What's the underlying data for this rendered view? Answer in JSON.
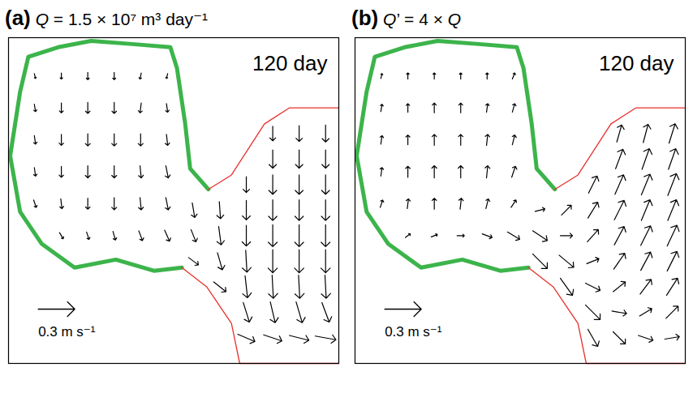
{
  "chart_data": [
    {
      "type": "vector_field",
      "panel": "(a)",
      "title": "Q = 1.5 × 10⁷ m³ day⁻¹",
      "annotation": "120 day",
      "scale_arrow": {
        "value": 0.3,
        "label": "0.3 m s⁻¹"
      },
      "xlim": [
        0,
        100
      ],
      "ylim": [
        0,
        102
      ],
      "xticks": [],
      "yticks": [],
      "tick_labels": false,
      "color": "#000000",
      "vectors": {
        "x": [
          8,
          16,
          24,
          32,
          40,
          48,
          8,
          16,
          24,
          32,
          40,
          48,
          8,
          16,
          24,
          32,
          40,
          48,
          8,
          16,
          24,
          32,
          40,
          48,
          8,
          16,
          24,
          32,
          40,
          48,
          16,
          24,
          32,
          40,
          48,
          56,
          56,
          56,
          64,
          64,
          64,
          64,
          72,
          72,
          72,
          72,
          72,
          72,
          72,
          80,
          80,
          80,
          80,
          80,
          80,
          80,
          80,
          80,
          88,
          88,
          88,
          88,
          88,
          88,
          88,
          88,
          88,
          96,
          96,
          96,
          96,
          96,
          96,
          96,
          96,
          96
        ],
        "y": [
          90,
          90,
          90,
          90,
          90,
          90,
          80,
          80,
          80,
          80,
          80,
          80,
          70,
          70,
          70,
          70,
          70,
          70,
          60,
          60,
          60,
          60,
          60,
          60,
          50,
          50,
          50,
          50,
          50,
          50,
          40,
          40,
          40,
          40,
          40,
          32,
          40,
          48,
          24,
          32,
          40,
          48,
          8,
          16,
          24,
          32,
          40,
          48,
          56,
          8,
          16,
          24,
          32,
          40,
          48,
          56,
          64,
          72,
          8,
          16,
          24,
          32,
          40,
          48,
          56,
          64,
          72,
          8,
          16,
          24,
          32,
          40,
          48,
          56,
          64,
          72
        ],
        "u": [
          0.01,
          0,
          0,
          0,
          -0.01,
          -0.01,
          0.01,
          0,
          0,
          0,
          -0.01,
          0.01,
          0.01,
          0,
          0,
          0,
          0,
          0.01,
          0.01,
          0,
          0,
          0,
          0.01,
          0.02,
          0.02,
          0.01,
          0,
          0,
          0.01,
          0.02,
          0.03,
          0.02,
          0.02,
          0.03,
          0.04,
          0.08,
          0.04,
          0.02,
          0.1,
          0.04,
          0.02,
          0.01,
          0.14,
          0.05,
          0.02,
          0.01,
          0,
          0,
          0,
          0.15,
          0.04,
          0.01,
          0,
          0,
          0,
          0,
          0,
          0,
          0.16,
          0.05,
          0.01,
          0,
          0,
          0,
          0,
          0,
          0,
          0.17,
          0.06,
          0.01,
          0,
          0,
          0,
          0,
          0,
          0
        ],
        "v": [
          -0.04,
          -0.05,
          -0.06,
          -0.06,
          -0.05,
          -0.04,
          -0.06,
          -0.08,
          -0.09,
          -0.09,
          -0.08,
          -0.07,
          -0.07,
          -0.09,
          -0.1,
          -0.1,
          -0.1,
          -0.09,
          -0.07,
          -0.09,
          -0.1,
          -0.1,
          -0.1,
          -0.1,
          -0.06,
          -0.08,
          -0.09,
          -0.1,
          -0.1,
          -0.1,
          -0.05,
          -0.06,
          -0.07,
          -0.08,
          -0.09,
          -0.06,
          -0.1,
          -0.12,
          -0.08,
          -0.14,
          -0.15,
          -0.14,
          -0.06,
          -0.16,
          -0.18,
          -0.18,
          -0.17,
          -0.16,
          -0.13,
          -0.05,
          -0.17,
          -0.19,
          -0.19,
          -0.18,
          -0.17,
          -0.16,
          -0.15,
          -0.12,
          -0.04,
          -0.17,
          -0.19,
          -0.19,
          -0.18,
          -0.17,
          -0.16,
          -0.15,
          -0.13,
          -0.03,
          -0.16,
          -0.19,
          -0.19,
          -0.18,
          -0.17,
          -0.16,
          -0.15,
          -0.14
        ]
      },
      "boundaries": [
        {
          "color": "#3cb44b",
          "x": [
            60.5,
            55,
            53.5,
            51,
            49,
            37.5,
            25,
            15,
            6,
            3.5,
            0.5,
            3.5,
            10,
            20,
            32.5,
            44,
            52.5
          ],
          "y": [
            54.5,
            61,
            75,
            92.5,
            99,
            100,
            101,
            99,
            96,
            85,
            65,
            47.5,
            37.5,
            30,
            32.5,
            29,
            30
          ]
        },
        {
          "color": "#e8302c",
          "x": [
            60.5,
            67.5,
            77.5,
            85,
            100
          ],
          "y": [
            54.5,
            59,
            75,
            80,
            80
          ]
        },
        {
          "color": "#e8302c",
          "x": [
            52.5,
            60,
            67.5,
            70,
            100
          ],
          "y": [
            30,
            24,
            12.5,
            0,
            0
          ]
        }
      ]
    },
    {
      "type": "vector_field",
      "panel": "(b)",
      "title": "Q’ = 4 × Q",
      "annotation": "120 day",
      "scale_arrow": {
        "value": 0.3,
        "label": "0.3 m s⁻¹"
      },
      "xlim": [
        0,
        100
      ],
      "ylim": [
        0,
        102
      ],
      "xticks": [],
      "yticks": [],
      "tick_labels": false,
      "color": "#000000",
      "vectors": {
        "x": [
          8,
          16,
          24,
          32,
          40,
          48,
          8,
          16,
          24,
          32,
          40,
          48,
          8,
          16,
          24,
          32,
          40,
          48,
          8,
          16,
          24,
          32,
          40,
          48,
          8,
          16,
          24,
          32,
          40,
          48,
          16,
          24,
          32,
          40,
          48,
          56,
          56,
          56,
          64,
          64,
          64,
          64,
          72,
          72,
          72,
          72,
          72,
          72,
          72,
          80,
          80,
          80,
          80,
          80,
          80,
          80,
          80,
          80,
          88,
          88,
          88,
          88,
          88,
          88,
          88,
          88,
          88,
          96,
          96,
          96,
          96,
          96,
          96,
          96,
          96,
          96
        ],
        "y": [
          90,
          90,
          90,
          90,
          90,
          90,
          80,
          80,
          80,
          80,
          80,
          80,
          70,
          70,
          70,
          70,
          70,
          70,
          60,
          60,
          60,
          60,
          60,
          60,
          50,
          50,
          50,
          50,
          50,
          50,
          40,
          40,
          40,
          40,
          40,
          32,
          40,
          48,
          24,
          32,
          40,
          48,
          8,
          16,
          24,
          32,
          40,
          48,
          56,
          8,
          16,
          24,
          32,
          40,
          48,
          56,
          64,
          72,
          8,
          16,
          24,
          32,
          40,
          48,
          56,
          64,
          72,
          8,
          16,
          24,
          32,
          40,
          48,
          56,
          64,
          72
        ],
        "u": [
          0.01,
          0,
          0,
          0,
          0,
          0.02,
          0.01,
          0,
          0,
          0,
          0.01,
          0.02,
          0.01,
          0,
          0,
          0,
          0.01,
          0.02,
          0.01,
          0,
          0,
          0,
          0.01,
          0.03,
          0.02,
          0.01,
          0,
          0.01,
          0.02,
          0.04,
          0.04,
          0.05,
          0.06,
          0.08,
          0.1,
          0.12,
          0.12,
          0.08,
          0.1,
          0.12,
          0.1,
          0.08,
          0.08,
          0.12,
          0.12,
          0.1,
          0.09,
          0.08,
          0.07,
          0.1,
          0.12,
          0.1,
          0.09,
          0.08,
          0.08,
          0.07,
          0.06,
          0.04,
          0.12,
          0.1,
          0.09,
          0.08,
          0.08,
          0.07,
          0.07,
          0.06,
          0.04,
          0.12,
          0.1,
          0.09,
          0.08,
          0.08,
          0.07,
          0.07,
          0.06,
          0.05
        ],
        "v": [
          0.04,
          0.05,
          0.05,
          0.05,
          0.05,
          0.05,
          0.06,
          0.07,
          0.08,
          0.08,
          0.07,
          0.07,
          0.07,
          0.08,
          0.09,
          0.09,
          0.09,
          0.08,
          0.07,
          0.09,
          0.1,
          0.1,
          0.1,
          0.09,
          0.06,
          0.08,
          0.09,
          0.09,
          0.08,
          0.06,
          0.03,
          0.02,
          0,
          -0.03,
          -0.06,
          -0.12,
          -0.08,
          0.02,
          -0.14,
          -0.1,
          0,
          0.08,
          -0.14,
          -0.12,
          -0.06,
          0.04,
          0.1,
          0.13,
          0.14,
          -0.1,
          -0.02,
          0.08,
          0.13,
          0.15,
          0.16,
          0.16,
          0.16,
          0.14,
          -0.04,
          0.06,
          0.12,
          0.15,
          0.16,
          0.17,
          0.17,
          0.17,
          0.15,
          0.02,
          0.1,
          0.14,
          0.16,
          0.17,
          0.17,
          0.18,
          0.17,
          0.16
        ]
      },
      "boundaries": [
        {
          "color": "#3cb44b",
          "x": [
            60.5,
            55,
            53.5,
            51,
            49,
            37.5,
            25,
            15,
            6,
            3.5,
            0.5,
            3.5,
            10,
            20,
            32.5,
            44,
            52.5
          ],
          "y": [
            54.5,
            61,
            75,
            92.5,
            99,
            100,
            101,
            99,
            96,
            85,
            65,
            47.5,
            37.5,
            30,
            32.5,
            29,
            30
          ]
        },
        {
          "color": "#e8302c",
          "x": [
            60.5,
            67.5,
            77.5,
            85,
            100
          ],
          "y": [
            54.5,
            59,
            75,
            80,
            80
          ]
        },
        {
          "color": "#e8302c",
          "x": [
            52.5,
            60,
            67.5,
            70,
            100
          ],
          "y": [
            30,
            24,
            12.5,
            0,
            0
          ]
        }
      ]
    }
  ]
}
